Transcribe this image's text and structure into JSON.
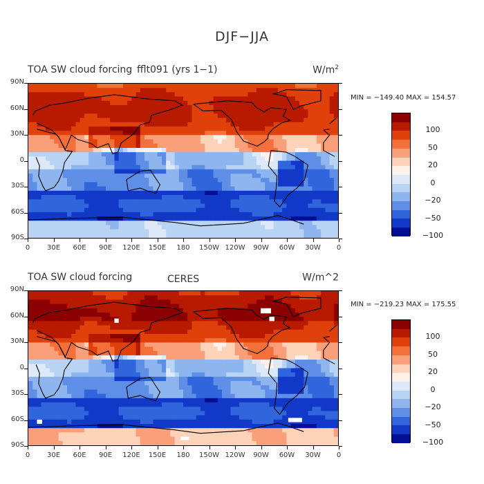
{
  "figure_title": "DJF−JJA",
  "panels": [
    {
      "title_left": "TOA SW cloud forcing",
      "title_mid": "fflt091 (yrs 1−1)",
      "units": "W/m",
      "units_sup": "2",
      "min_max": "MIN = −149.40  MAX = 154.57"
    },
    {
      "title_left": "TOA SW cloud forcing",
      "title_mid": "CERES",
      "units": "W/m^2",
      "units_sup": "",
      "min_max": "MIN = −219.23  MAX = 175.55"
    }
  ],
  "lat_labels": [
    "90N",
    "60N",
    "30N",
    "0",
    "30S",
    "60S",
    "90S"
  ],
  "lon_labels": [
    "0",
    "30E",
    "60E",
    "90E",
    "120E",
    "150E",
    "180",
    "150W",
    "120W",
    "90W",
    "60W",
    "30W",
    "0"
  ],
  "colorbar": {
    "labels": [
      "100",
      "50",
      "20",
      "0",
      "−20",
      "−50",
      "−100"
    ],
    "colors": [
      "#8b0000",
      "#b81a00",
      "#e0400a",
      "#f4703a",
      "#f9a07a",
      "#fcd2b8",
      "#fdf1ea",
      "#dde9f8",
      "#b8d3f3",
      "#8eb5ee",
      "#5e8ee6",
      "#3065dc",
      "#1238c8",
      "#001096"
    ]
  }
}
